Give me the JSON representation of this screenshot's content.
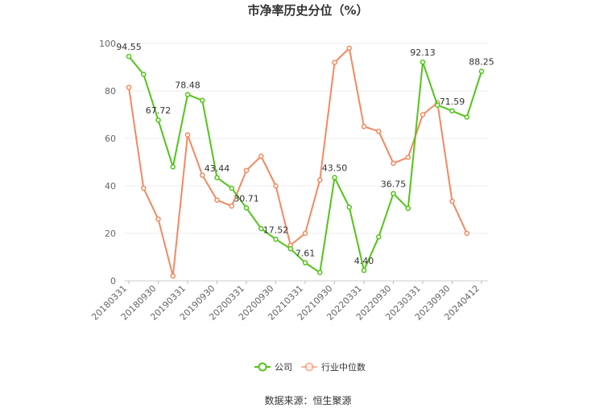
{
  "chart_data": {
    "type": "line",
    "title": "市净率历史分位（%）",
    "ylim": [
      0,
      100
    ],
    "yticks": [
      0,
      20,
      40,
      60,
      80,
      100
    ],
    "x_tick_labels": [
      "20180331",
      "20180930",
      "20190331",
      "20190930",
      "20200331",
      "20200930",
      "20210331",
      "20210930",
      "20220331",
      "20220930",
      "20230331",
      "20230930",
      "20240412"
    ],
    "grid": true,
    "legend_position": "bottom",
    "series": [
      {
        "name": "公司",
        "color": "#52c41a",
        "values": [
          94.55,
          87,
          67.72,
          48,
          78.48,
          76,
          43.44,
          39,
          30.71,
          22,
          17.52,
          13.5,
          7.61,
          3.5,
          43.5,
          31,
          4.4,
          18.5,
          36.75,
          30.5,
          92.13,
          74,
          71.59,
          69,
          88.25
        ],
        "labels": {
          "0": "94.55",
          "2": "67.72",
          "4": "78.48",
          "6": "43.44",
          "8": "30.71",
          "10": "17.52",
          "12": "7.61",
          "14": "43.50",
          "16": "4.40",
          "18": "36.75",
          "20": "92.13",
          "22": "71.59",
          "24": "88.25"
        }
      },
      {
        "name": "行业中位数",
        "color": "#f4895f",
        "values": [
          81.5,
          39,
          26,
          2,
          61.5,
          44.5,
          34,
          31.5,
          46.5,
          52.5,
          40,
          15,
          20,
          42.5,
          92,
          98,
          65,
          63,
          49.5,
          52,
          70,
          75,
          33.5,
          20,
          null
        ]
      }
    ]
  },
  "source_text": "数据来源：恒生聚源"
}
